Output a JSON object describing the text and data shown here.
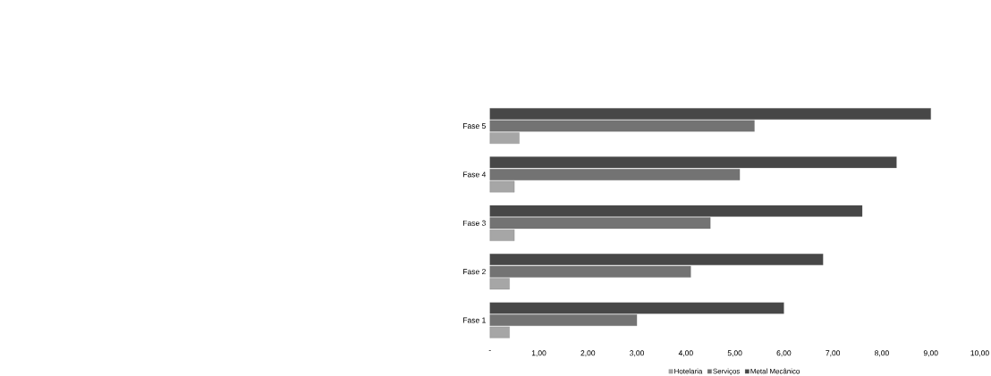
{
  "chart_data": {
    "type": "bar",
    "orientation": "horizontal",
    "categories": [
      "Fase 5",
      "Fase 4",
      "Fase 3",
      "Fase 2",
      "Fase 1"
    ],
    "series": [
      {
        "name": "Hotelaria",
        "color": "#a6a6a6",
        "values": [
          0.6,
          0.5,
          0.5,
          0.4,
          0.4
        ]
      },
      {
        "name": "Serviços",
        "color": "#737373",
        "values": [
          5.4,
          5.1,
          4.5,
          4.1,
          3.0
        ]
      },
      {
        "name": "Metal Mecânico",
        "color": "#474747",
        "values": [
          9.0,
          8.3,
          7.6,
          6.8,
          6.0
        ]
      }
    ],
    "xlim": [
      0,
      10
    ],
    "xticks": [
      {
        "value": 0,
        "label": "-"
      },
      {
        "value": 1,
        "label": "1,00"
      },
      {
        "value": 2,
        "label": "2,00"
      },
      {
        "value": 3,
        "label": "3,00"
      },
      {
        "value": 4,
        "label": "4,00"
      },
      {
        "value": 5,
        "label": "5,00"
      },
      {
        "value": 6,
        "label": "6,00"
      },
      {
        "value": 7,
        "label": "7,00"
      },
      {
        "value": 8,
        "label": "8,00"
      },
      {
        "value": 9,
        "label": "9,00"
      },
      {
        "value": 10,
        "label": "10,00"
      }
    ],
    "grid": false,
    "legend": "bottom"
  }
}
